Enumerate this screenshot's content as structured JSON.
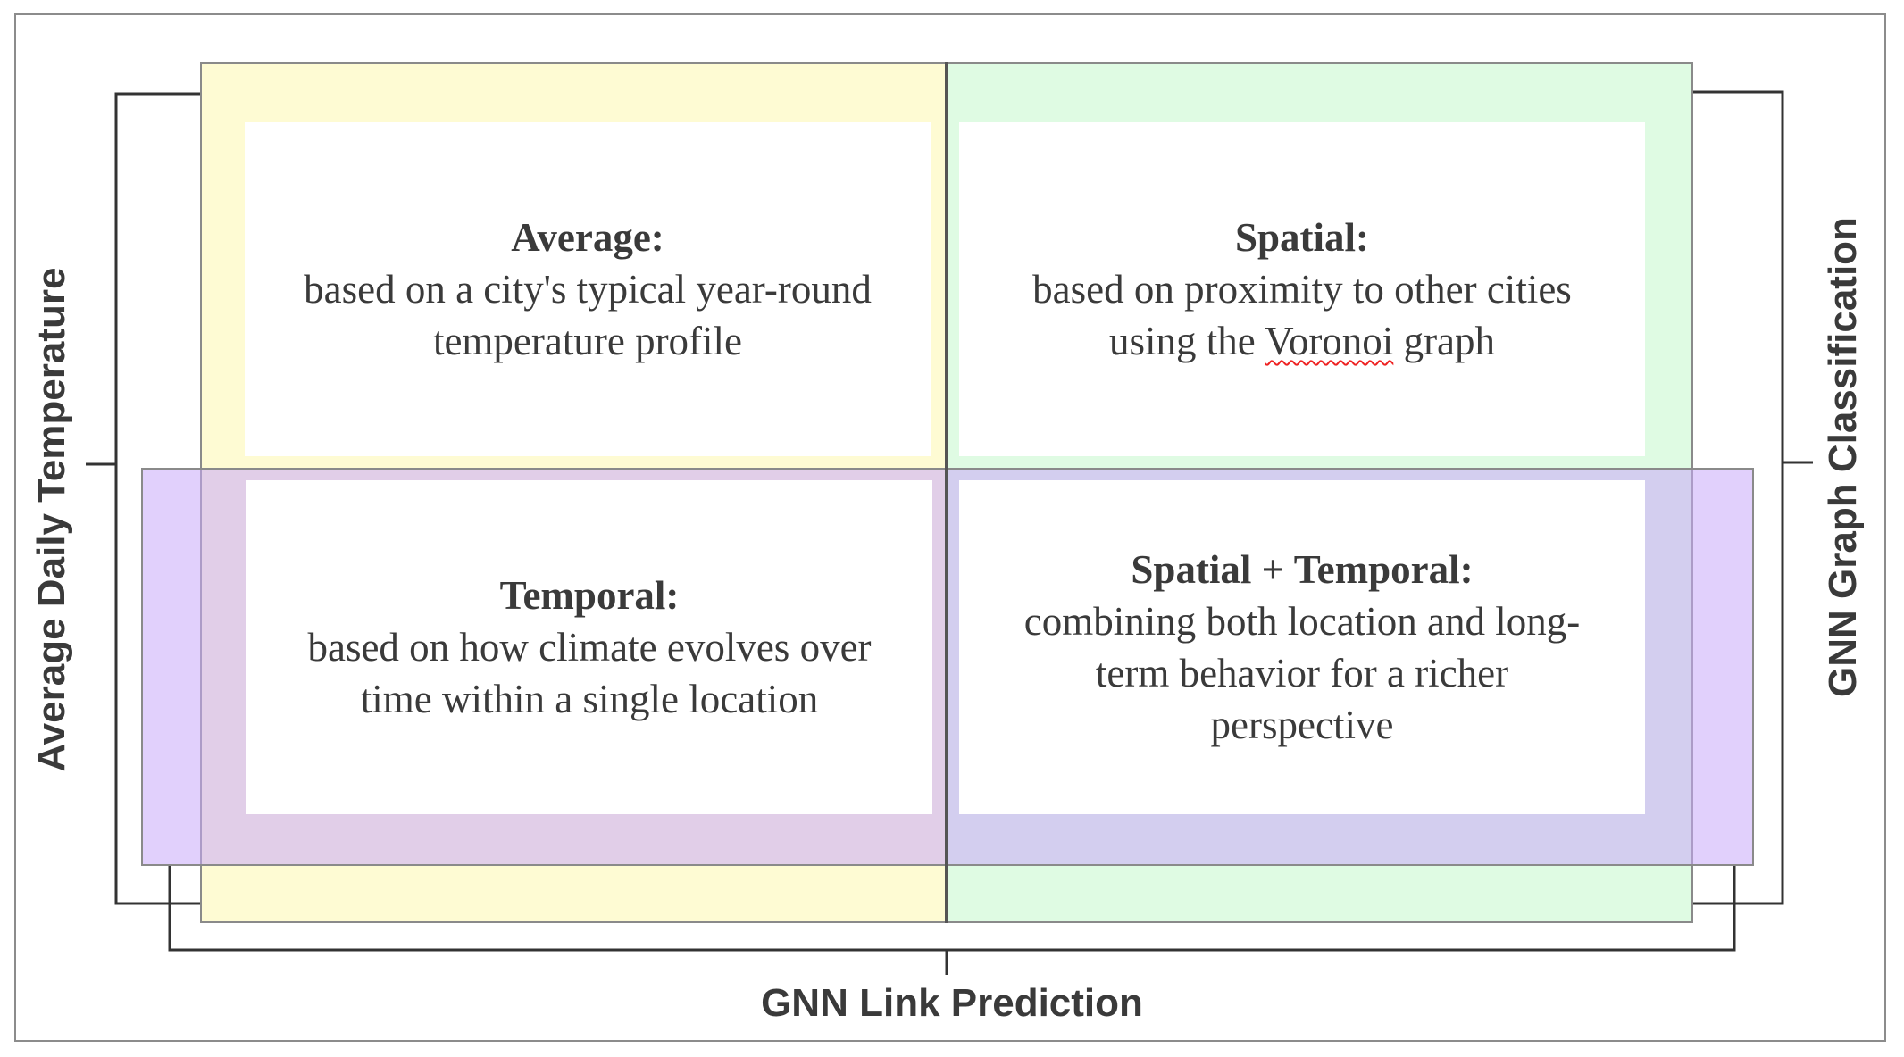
{
  "labels": {
    "left": "Average Daily Temperature",
    "right": "GNN Graph Classification",
    "bottom": "GNN Link Prediction"
  },
  "quadrants": [
    {
      "title": "Average:",
      "body": "based on a city's typical year-round\ntemperature profile"
    },
    {
      "title": "Spatial:",
      "body_before": "based on proximity to other cities\nusing the ",
      "body_marked": "Voronoi",
      "body_after": " graph"
    },
    {
      "title": "Temporal:",
      "body": "based on how climate evolves over\ntime within a single location"
    },
    {
      "title": "Spatial + Temporal:",
      "body": "combining both location and long-\nterm behavior for a richer\nperspective"
    }
  ],
  "colors": {
    "left_column": "#fefbd3",
    "right_column": "#dffbe3",
    "bottom_row": "#c8aafa"
  }
}
